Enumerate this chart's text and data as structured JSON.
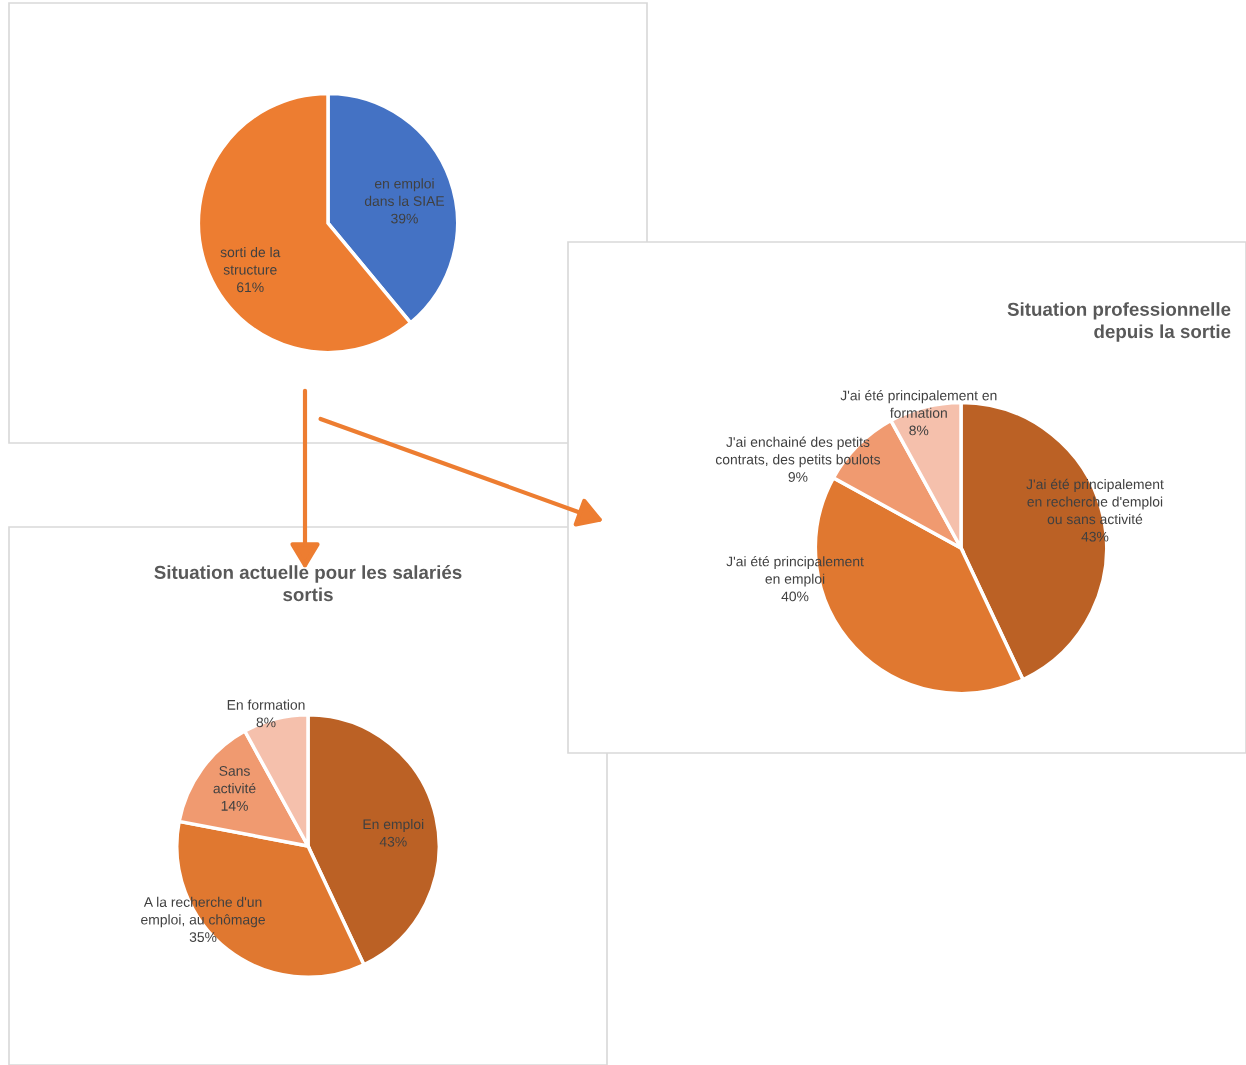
{
  "chart_data": [
    {
      "type": "pie",
      "categories": [
        "en emploi\ndans la SIAE",
        "sorti de la\nstructure"
      ],
      "values": [
        39,
        61
      ],
      "colors": [
        "#4472c4",
        "#ed7d31"
      ],
      "value_labels": [
        "39%",
        "61%"
      ]
    },
    {
      "type": "pie",
      "title": "Situation professionnelle\ndepuis la sortie",
      "categories": [
        "J'ai été principalement\nen recherche d'emploi\nou sans activité",
        "J'ai été principalement\nen emploi",
        "J'ai enchainé des petits\ncontrats, des petits boulots",
        "J'ai été principalement en\nformation"
      ],
      "values": [
        43,
        40,
        9,
        8
      ],
      "colors": [
        "#bb6125",
        "#e07830",
        "#f09a70",
        "#f5c0ac"
      ],
      "value_labels": [
        "43%",
        "40%",
        "9%",
        "8%"
      ]
    },
    {
      "type": "pie",
      "title": "Situation actuelle pour les salariés\nsortis",
      "categories": [
        "En emploi",
        "A la recherche d'un\nemploi, au chômage",
        "Sans\nactivité",
        "En formation"
      ],
      "values": [
        43,
        35,
        14,
        8
      ],
      "colors": [
        "#bb6125",
        "#e07830",
        "#f09a70",
        "#f5c0ac"
      ],
      "value_labels": [
        "43%",
        "35%",
        "14%",
        "8%"
      ]
    }
  ]
}
